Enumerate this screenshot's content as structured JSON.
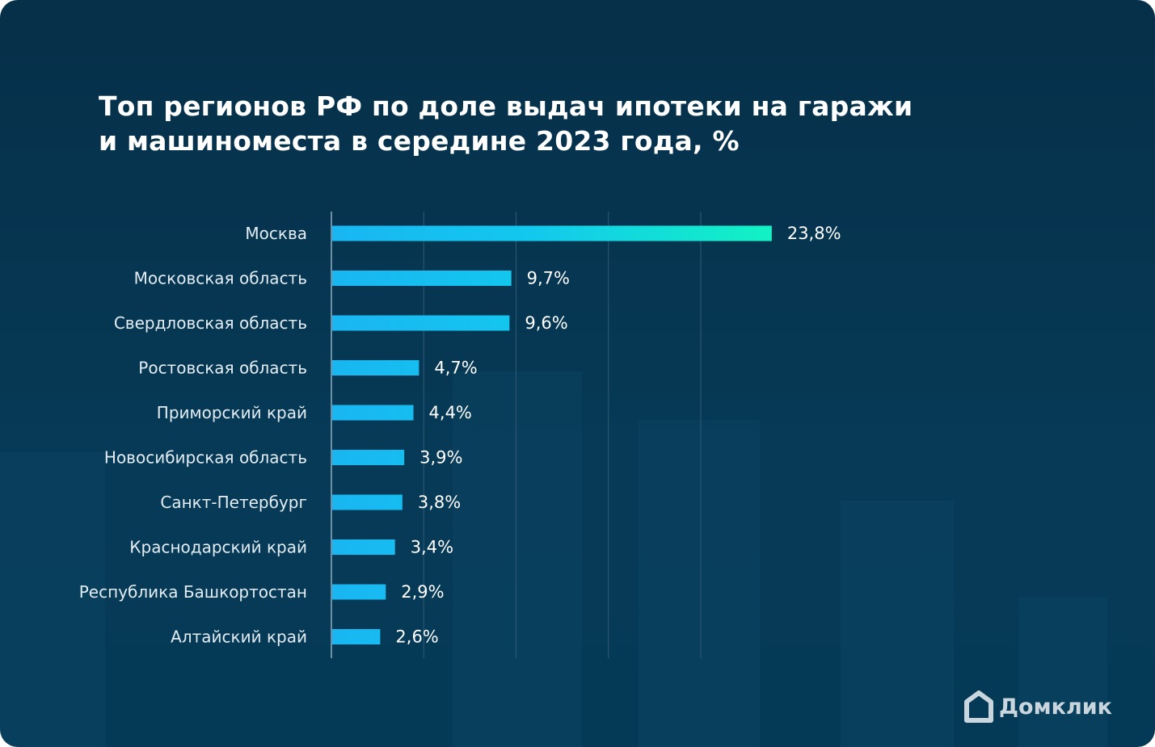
{
  "title_lines": [
    "Топ регионов РФ по доле выдач ипотеки на гаражи",
    "и машиноместа в середине 2023 года, %"
  ],
  "logo_text": "Домклик",
  "colors": {
    "background": "#063a56",
    "bar_start": "#19b6f2",
    "bar_end": "#12f2c4",
    "text": "#ffffff",
    "label": "#e3edf3",
    "grid": "#2f5a74"
  },
  "chart_data": {
    "type": "bar",
    "orientation": "horizontal",
    "title": "Топ регионов РФ по доле выдач ипотеки на гаражи и машиноместа в середине 2023 года, %",
    "categories": [
      "Москва",
      "Московская область",
      "Свердловская область",
      "Ростовская область",
      "Приморский край",
      "Новосибирская область",
      "Санкт-Петербург",
      "Краснодарский край",
      "Республика Башкортостан",
      "Алтайский край"
    ],
    "values": [
      23.8,
      9.7,
      9.6,
      4.7,
      4.4,
      3.9,
      3.8,
      3.4,
      2.9,
      2.6
    ],
    "value_labels": [
      "23,8%",
      "9,7%",
      "9,6%",
      "4,7%",
      "4,4%",
      "3,9%",
      "3,8%",
      "3,4%",
      "2,9%",
      "2,6%"
    ],
    "xlim": [
      0,
      25
    ],
    "grid": true,
    "grid_step": 5,
    "legend": "none"
  }
}
